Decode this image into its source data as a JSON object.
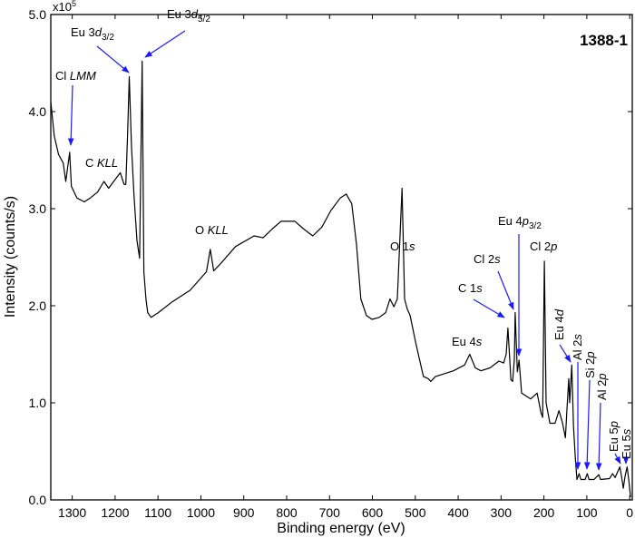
{
  "chart_data": {
    "type": "line",
    "title": "1388-1",
    "xlabel": "Binding energy (eV)",
    "ylabel": "Intensity (counts/s)",
    "y_multiplier": "x10",
    "y_multiplier_exp": "5",
    "xlim": [
      1350,
      -6
    ],
    "ylim": [
      0,
      5
    ],
    "x_ticks": [
      1300,
      1200,
      1100,
      1000,
      900,
      800,
      700,
      600,
      500,
      400,
      300,
      200,
      100,
      0
    ],
    "y_ticks": [
      "0.0",
      "1.0",
      "2.0",
      "3.0",
      "4.0",
      "5.0"
    ],
    "grid": false,
    "series": [
      {
        "name": "spectrum",
        "color": "#000000",
        "x": [
          1350,
          1342,
          1332,
          1321,
          1315,
          1306,
          1302,
          1289,
          1272,
          1258,
          1241,
          1226,
          1215,
          1200,
          1188,
          1179,
          1175,
          1171,
          1167,
          1162,
          1156,
          1149,
          1143,
          1137,
          1133,
          1128,
          1124,
          1116,
          1099,
          1067,
          1025,
          999,
          987,
          978,
          970,
          957,
          919,
          876,
          855,
          834,
          813,
          781,
          760,
          739,
          718,
          697,
          675,
          661,
          648,
          637,
          627,
          614,
          601,
          584,
          569,
          559,
          550,
          542,
          531,
          525,
          519,
          512,
          500,
          491,
          481,
          470,
          464,
          453,
          411,
          385,
          373,
          360,
          347,
          326,
          305,
          294,
          288,
          284,
          277,
          273,
          269,
          267,
          262,
          258,
          252,
          231,
          216,
          207,
          203,
          199,
          195,
          186,
          174,
          165,
          157,
          150,
          146,
          142,
          140,
          135,
          131,
          127,
          123,
          118,
          114,
          104,
          99,
          95,
          83,
          72,
          68,
          47,
          40,
          34,
          28,
          23,
          19,
          15,
          11,
          6,
          2,
          -2
        ],
        "y": [
          4.1,
          3.75,
          3.56,
          3.47,
          3.28,
          3.58,
          3.23,
          3.11,
          3.07,
          3.11,
          3.17,
          3.28,
          3.21,
          3.3,
          3.37,
          3.25,
          3.25,
          3.75,
          4.36,
          3.65,
          3.14,
          2.67,
          2.49,
          4.52,
          2.35,
          2.07,
          1.93,
          1.88,
          1.93,
          2.04,
          2.16,
          2.29,
          2.35,
          2.58,
          2.36,
          2.42,
          2.61,
          2.72,
          2.7,
          2.79,
          2.87,
          2.87,
          2.79,
          2.72,
          2.81,
          2.98,
          3.11,
          3.15,
          3.05,
          2.63,
          2.07,
          1.9,
          1.86,
          1.88,
          1.93,
          2.07,
          1.99,
          2.07,
          3.21,
          2.07,
          1.97,
          1.9,
          1.64,
          1.46,
          1.27,
          1.25,
          1.22,
          1.27,
          1.33,
          1.39,
          1.5,
          1.36,
          1.33,
          1.36,
          1.43,
          1.41,
          1.5,
          1.77,
          1.24,
          1.22,
          1.45,
          1.93,
          1.32,
          1.44,
          1.1,
          1.04,
          1.1,
          0.9,
          0.85,
          2.46,
          1.0,
          0.79,
          0.79,
          0.92,
          0.8,
          0.64,
          0.95,
          1.25,
          1.0,
          1.39,
          0.76,
          0.45,
          0.21,
          0.27,
          0.21,
          0.21,
          0.27,
          0.21,
          0.21,
          0.26,
          0.21,
          0.22,
          0.27,
          0.23,
          0.29,
          0.34,
          0.24,
          0.12,
          0.24,
          0.34,
          0.2,
          0.03
        ]
      }
    ],
    "annotations": [
      {
        "name": "cl-lmm",
        "prefix": "Cl ",
        "italic": "LMM",
        "sub": ""
      },
      {
        "name": "c-kll",
        "prefix": "C ",
        "italic": "KLL",
        "sub": ""
      },
      {
        "name": "eu-3d32",
        "prefix": "Eu 3",
        "italic": "d",
        "sub": "3/2"
      },
      {
        "name": "eu-3d52",
        "prefix": "Eu 3",
        "italic": "d",
        "sub": "5/2"
      },
      {
        "name": "o-kll",
        "prefix": "O ",
        "italic": "KLL",
        "sub": ""
      },
      {
        "name": "o-1s",
        "prefix": "O 1",
        "italic": "s",
        "sub": ""
      },
      {
        "name": "eu-4p32",
        "prefix": "Eu 4",
        "italic": "p",
        "sub": "3/2"
      },
      {
        "name": "cl-2s",
        "prefix": "Cl 2",
        "italic": "s",
        "sub": ""
      },
      {
        "name": "c-1s",
        "prefix": "C 1",
        "italic": "s",
        "sub": ""
      },
      {
        "name": "cl-2p",
        "prefix": "Cl 2",
        "italic": "p",
        "sub": ""
      },
      {
        "name": "eu-4s",
        "prefix": "Eu 4",
        "italic": "s",
        "sub": ""
      },
      {
        "name": "eu-4d",
        "prefix": "Eu 4",
        "italic": "d",
        "sub": ""
      },
      {
        "name": "al-2s",
        "prefix": "Al 2",
        "italic": "s",
        "sub": ""
      },
      {
        "name": "si-2p",
        "prefix": "Si 2",
        "italic": "p",
        "sub": ""
      },
      {
        "name": "al-2p",
        "prefix": "Al 2",
        "italic": "p",
        "sub": ""
      },
      {
        "name": "eu-5p",
        "prefix": "Eu 5",
        "italic": "p",
        "sub": ""
      },
      {
        "name": "eu-5s",
        "prefix": "Eu 5",
        "italic": "s",
        "sub": ""
      }
    ],
    "annotation_color": "#1a1aff"
  }
}
